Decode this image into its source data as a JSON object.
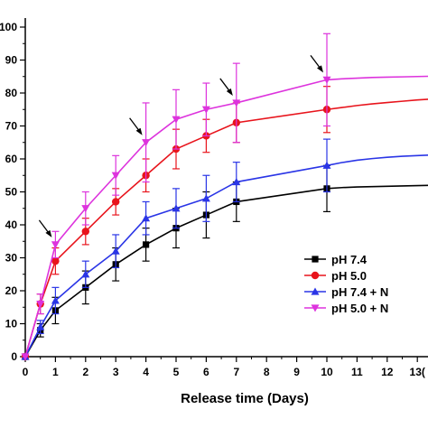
{
  "chart_data": {
    "type": "line",
    "title": "",
    "xlabel": "Release time (Days)",
    "ylabel": "",
    "xlim": [
      0,
      13.5
    ],
    "ylim": [
      0,
      105
    ],
    "x_ticks": [
      0,
      1,
      2,
      3,
      4,
      5,
      6,
      7,
      8,
      9,
      10,
      11,
      12,
      13
    ],
    "x_tick_labels": [
      "0",
      "1",
      "2",
      "3",
      "4",
      "5",
      "6",
      "7",
      "8",
      "9",
      "10",
      "11",
      "12",
      "13("
    ],
    "y_ticks": [
      0,
      10,
      20,
      30,
      40,
      50,
      60,
      70,
      80,
      90,
      100
    ],
    "y_tick_labels": [
      "0",
      "10",
      "20",
      "30",
      "40",
      "50",
      "60",
      "70",
      "80",
      "90",
      "100"
    ],
    "grid": false,
    "legend_position": "bottom-right",
    "series": [
      {
        "name": "pH 7.4",
        "color": "#000000",
        "marker": "square",
        "x": [
          0,
          0.5,
          1,
          2,
          3,
          4,
          5,
          6,
          7,
          10
        ],
        "y": [
          0,
          8,
          14,
          21,
          28,
          34,
          39,
          43,
          47,
          51
        ],
        "err": [
          0,
          2,
          4,
          5,
          5,
          5,
          6,
          7,
          6,
          7
        ],
        "tail_x": [
          10,
          10.5,
          11,
          11.5,
          12,
          12.5,
          13,
          13.5
        ],
        "tail_y": [
          51,
          51.3,
          51.5,
          51.6,
          51.7,
          51.8,
          51.9,
          52
        ]
      },
      {
        "name": "pH 5.0",
        "color": "#e8141c",
        "marker": "circle",
        "x": [
          0,
          0.5,
          1,
          2,
          3,
          4,
          5,
          6,
          7,
          10
        ],
        "y": [
          0,
          16,
          29,
          38,
          47,
          55,
          63,
          67,
          71,
          75
        ],
        "err": [
          0,
          3,
          4,
          4,
          4,
          5,
          6,
          5,
          6,
          7
        ],
        "tail_x": [
          10,
          10.5,
          11,
          11.5,
          12,
          12.5,
          13,
          13.5
        ],
        "tail_y": [
          75,
          75.6,
          76.2,
          76.7,
          77.1,
          77.5,
          77.9,
          78.2
        ]
      },
      {
        "name": "pH 7.4 + N",
        "color": "#2a35e6",
        "marker": "triangle-up",
        "x": [
          0,
          0.5,
          1,
          2,
          3,
          4,
          5,
          6,
          7,
          10
        ],
        "y": [
          0,
          9,
          17,
          25,
          32,
          42,
          45,
          48,
          53,
          58
        ],
        "err": [
          0,
          2,
          4,
          4,
          5,
          5,
          6,
          7,
          6,
          8
        ],
        "tail_x": [
          10,
          10.5,
          11,
          11.5,
          12,
          12.5,
          13,
          13.5
        ],
        "tail_y": [
          58,
          58.9,
          59.6,
          60.1,
          60.5,
          60.8,
          61,
          61.2
        ]
      },
      {
        "name": "pH 5.0 + N",
        "color": "#dd33dd",
        "marker": "triangle-down",
        "x": [
          0,
          0.5,
          1,
          2,
          3,
          4,
          5,
          6,
          7,
          10
        ],
        "y": [
          0,
          16,
          34,
          45,
          55,
          65,
          72,
          75,
          77,
          84
        ],
        "err": [
          0,
          3,
          4,
          5,
          6,
          12,
          9,
          8,
          12,
          14
        ],
        "tail_x": [
          10,
          10.5,
          11,
          11.5,
          12,
          12.5,
          13,
          13.5
        ],
        "tail_y": [
          84,
          84.3,
          84.5,
          84.7,
          84.8,
          84.9,
          85,
          85.1
        ]
      }
    ],
    "annotations": [
      {
        "type": "arrow",
        "x": 1,
        "y": 34
      },
      {
        "type": "arrow",
        "x": 4,
        "y": 65
      },
      {
        "type": "arrow",
        "x": 7,
        "y": 77
      },
      {
        "type": "arrow",
        "x": 10,
        "y": 84
      }
    ]
  }
}
